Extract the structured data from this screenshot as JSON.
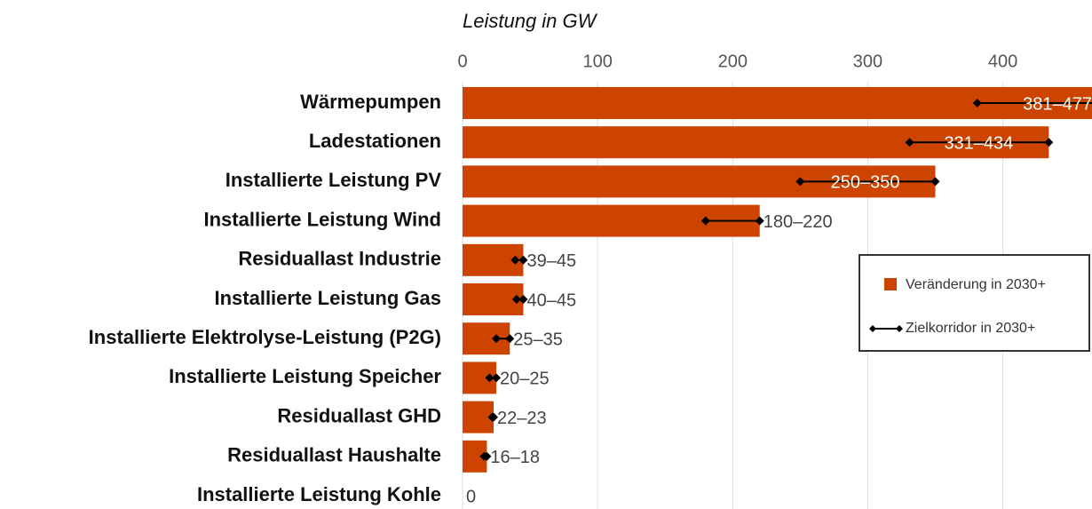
{
  "chart_data": {
    "type": "bar",
    "orientation": "horizontal",
    "x_axis_title": "Leistung in GW",
    "categories": [
      "Wärmepumpen",
      "Ladestationen",
      "Installierte Leistung PV",
      "Installierte Leistung Wind",
      "Residuallast Industrie",
      "Installierte Leistung Gas",
      "Installierte Elektrolyse-Leistung (P2G)",
      "Installierte Leistung Speicher",
      "Residuallast GHD",
      "Residuallast Haushalte",
      "Installierte Leistung Kohle"
    ],
    "series": [
      {
        "name": "Veränderung in 2030+",
        "color": "#cc4400",
        "values": [
          477,
          434,
          350,
          220,
          45,
          45,
          35,
          25,
          23,
          18,
          0
        ],
        "value_labels": [
          "381–477",
          "331–434",
          "250–350",
          "180–220",
          "39–45",
          "40–45",
          "25–35",
          "20–25",
          "22–23",
          "16–18",
          "0"
        ]
      },
      {
        "name": "Zielkorridor in 2030+",
        "color": "#000000",
        "low": [
          381,
          331,
          250,
          180,
          39,
          40,
          25,
          20,
          22,
          16,
          null
        ],
        "high": [
          477,
          434,
          350,
          220,
          45,
          45,
          35,
          25,
          23,
          18,
          null
        ]
      }
    ],
    "xlim": [
      0,
      466
    ],
    "xticks": [
      0,
      100,
      200,
      300,
      400
    ],
    "grid": true,
    "legend": "right"
  }
}
